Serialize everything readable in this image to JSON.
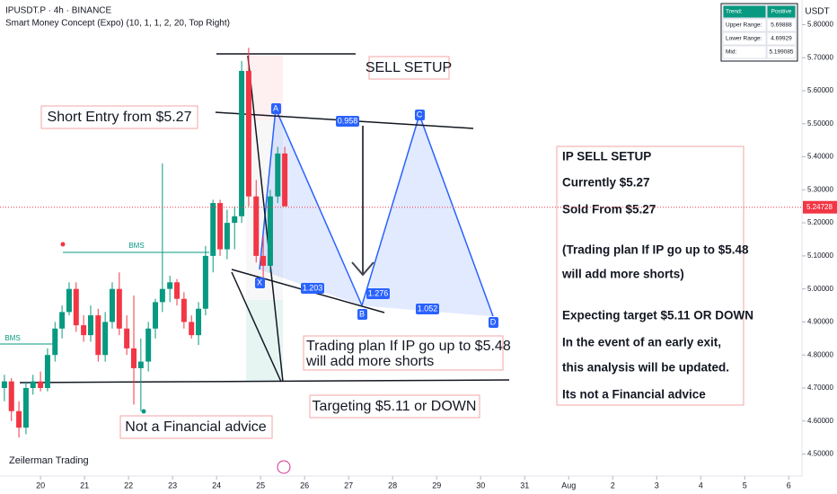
{
  "chart_data": {
    "type": "candlestick",
    "title": "IPUSDT.P · 4h · BINANCE",
    "subtitle": "Smart Money Concept (Expo) (10, 1, 1, 2, 20, Top Right)",
    "y_unit": "USDT",
    "last_price": {
      "value": 5.24728,
      "label": "5.24728"
    },
    "watermark": "Zeilerman Trading",
    "x": [
      -0.82,
      -0.66,
      -0.49,
      -0.33,
      -0.17,
      0,
      0.16,
      0.33,
      0.49,
      0.65,
      0.81,
      0.98,
      1.14,
      1.31,
      1.47,
      1.63,
      1.79,
      1.96,
      2.12,
      2.28,
      2.45,
      2.61,
      2.77,
      2.94,
      3.1,
      3.26,
      3.43,
      3.59,
      3.75,
      3.92,
      4.08,
      4.24,
      4.41,
      4.57,
      4.73,
      4.9,
      5.06,
      5.22,
      5.39,
      5.55
    ],
    "open": [
      4.7,
      4.72,
      4.63,
      4.58,
      4.7,
      4.72,
      4.7,
      4.8,
      4.88,
      4.93,
      5.0,
      4.89,
      4.86,
      4.92,
      4.8,
      4.9,
      5.0,
      4.88,
      4.82,
      4.76,
      4.78,
      4.88,
      4.96,
      5.0,
      5.02,
      4.97,
      4.9,
      4.86,
      4.94,
      5.1,
      5.26,
      5.12,
      5.2,
      5.22,
      5.66,
      5.28,
      5.1,
      5.07,
      5.28,
      5.41
    ],
    "high": [
      4.74,
      4.73,
      4.66,
      4.72,
      4.74,
      4.75,
      4.82,
      4.9,
      4.95,
      5.02,
      5.02,
      4.92,
      4.95,
      4.94,
      4.93,
      5.02,
      5.05,
      4.92,
      4.98,
      4.85,
      4.9,
      4.97,
      5.38,
      5.04,
      5.03,
      4.99,
      4.92,
      4.96,
      5.13,
      5.27,
      5.27,
      5.24,
      5.25,
      5.69,
      5.73,
      5.33,
      5.16,
      5.3,
      5.43,
      5.43
    ],
    "low": [
      4.66,
      4.6,
      4.55,
      4.56,
      4.68,
      4.69,
      4.69,
      4.78,
      4.85,
      4.92,
      4.87,
      4.84,
      4.84,
      4.78,
      4.78,
      4.88,
      4.86,
      4.8,
      4.65,
      4.63,
      4.75,
      4.85,
      4.93,
      4.96,
      4.95,
      4.88,
      4.85,
      4.83,
      4.92,
      5.05,
      5.1,
      5.09,
      5.12,
      5.2,
      5.25,
      5.08,
      5.03,
      5.05,
      5.26,
      5.25
    ],
    "close": [
      4.72,
      4.63,
      4.58,
      4.7,
      4.72,
      4.7,
      4.8,
      4.88,
      4.93,
      5.0,
      4.89,
      4.86,
      4.92,
      4.8,
      4.9,
      5.0,
      4.88,
      4.82,
      4.76,
      4.78,
      4.88,
      4.96,
      5.0,
      5.02,
      4.97,
      4.9,
      4.86,
      4.94,
      5.1,
      5.26,
      5.12,
      5.2,
      5.22,
      5.66,
      5.28,
      5.1,
      5.07,
      5.28,
      5.41,
      5.25
    ],
    "up_color": "#089981",
    "down_color": "#f23645",
    "xlim": [
      -0.92,
      17.3
    ],
    "xticks": [
      {
        "value": 0,
        "label": "20"
      },
      {
        "value": 1,
        "label": "21"
      },
      {
        "value": 2,
        "label": "22"
      },
      {
        "value": 3,
        "label": "23"
      },
      {
        "value": 4,
        "label": "24"
      },
      {
        "value": 5,
        "label": "25"
      },
      {
        "value": 6,
        "label": "26"
      },
      {
        "value": 7,
        "label": "27"
      },
      {
        "value": 8,
        "label": "28"
      },
      {
        "value": 9,
        "label": "29"
      },
      {
        "value": 10,
        "label": "30"
      },
      {
        "value": 11,
        "label": "31"
      },
      {
        "value": 12,
        "label": "Aug"
      },
      {
        "value": 13,
        "label": "2"
      },
      {
        "value": 14,
        "label": "3"
      },
      {
        "value": 15,
        "label": "4"
      },
      {
        "value": 16,
        "label": "5"
      },
      {
        "value": 17,
        "label": "6"
      }
    ],
    "ylim": [
      4.4335,
      5.8747
    ],
    "yticks": [
      {
        "value": 4.5,
        "label": "4.50000"
      },
      {
        "value": 4.6,
        "label": "4.60000"
      },
      {
        "value": 4.7,
        "label": "4.70000"
      },
      {
        "value": 4.8,
        "label": "4.80000"
      },
      {
        "value": 4.9,
        "label": "4.90000"
      },
      {
        "value": 5.0,
        "label": "5.00000"
      },
      {
        "value": 5.1,
        "label": "5.10000"
      },
      {
        "value": 5.2,
        "label": "5.20000"
      },
      {
        "value": 5.3,
        "label": "5.30000"
      },
      {
        "value": 5.4,
        "label": "5.40000"
      },
      {
        "value": 5.5,
        "label": "5.50000"
      },
      {
        "value": 5.6,
        "label": "5.60000"
      },
      {
        "value": 5.7,
        "label": "5.70000"
      },
      {
        "value": 5.8,
        "label": "5.80000"
      }
    ],
    "grid": false,
    "info_table": [
      [
        "Trend:",
        "Positive"
      ],
      [
        "Upper Range:",
        "5.69888"
      ],
      [
        "Lower Range:",
        "4.69929"
      ],
      [
        "Mid:",
        "5.199085"
      ]
    ],
    "pattern_labels": [
      "X",
      "A",
      "B",
      "C",
      "D",
      "0.958",
      "1.203",
      "1.276",
      "1.052",
      "BMS",
      "BMS"
    ],
    "annotations": {
      "sell_setup": "SELL SETUP",
      "short_entry": "Short Entry from $5.27",
      "plan": [
        "Trading plan If IP go up to $5.48",
        "will add more shorts"
      ],
      "targeting": "Targeting $5.11 or DOWN",
      "not_advice": "Not a Financial advice",
      "summary": [
        "IP SELL SETUP",
        "Currently $5.27",
        "Sold From $5.27",
        "(Trading plan If IP go up to $5.48",
        "will add more shorts)",
        "Expecting target $5.11 OR DOWN",
        "In the event of an early exit,",
        "this analysis will be updated.",
        "Its not a Financial advice"
      ]
    }
  }
}
